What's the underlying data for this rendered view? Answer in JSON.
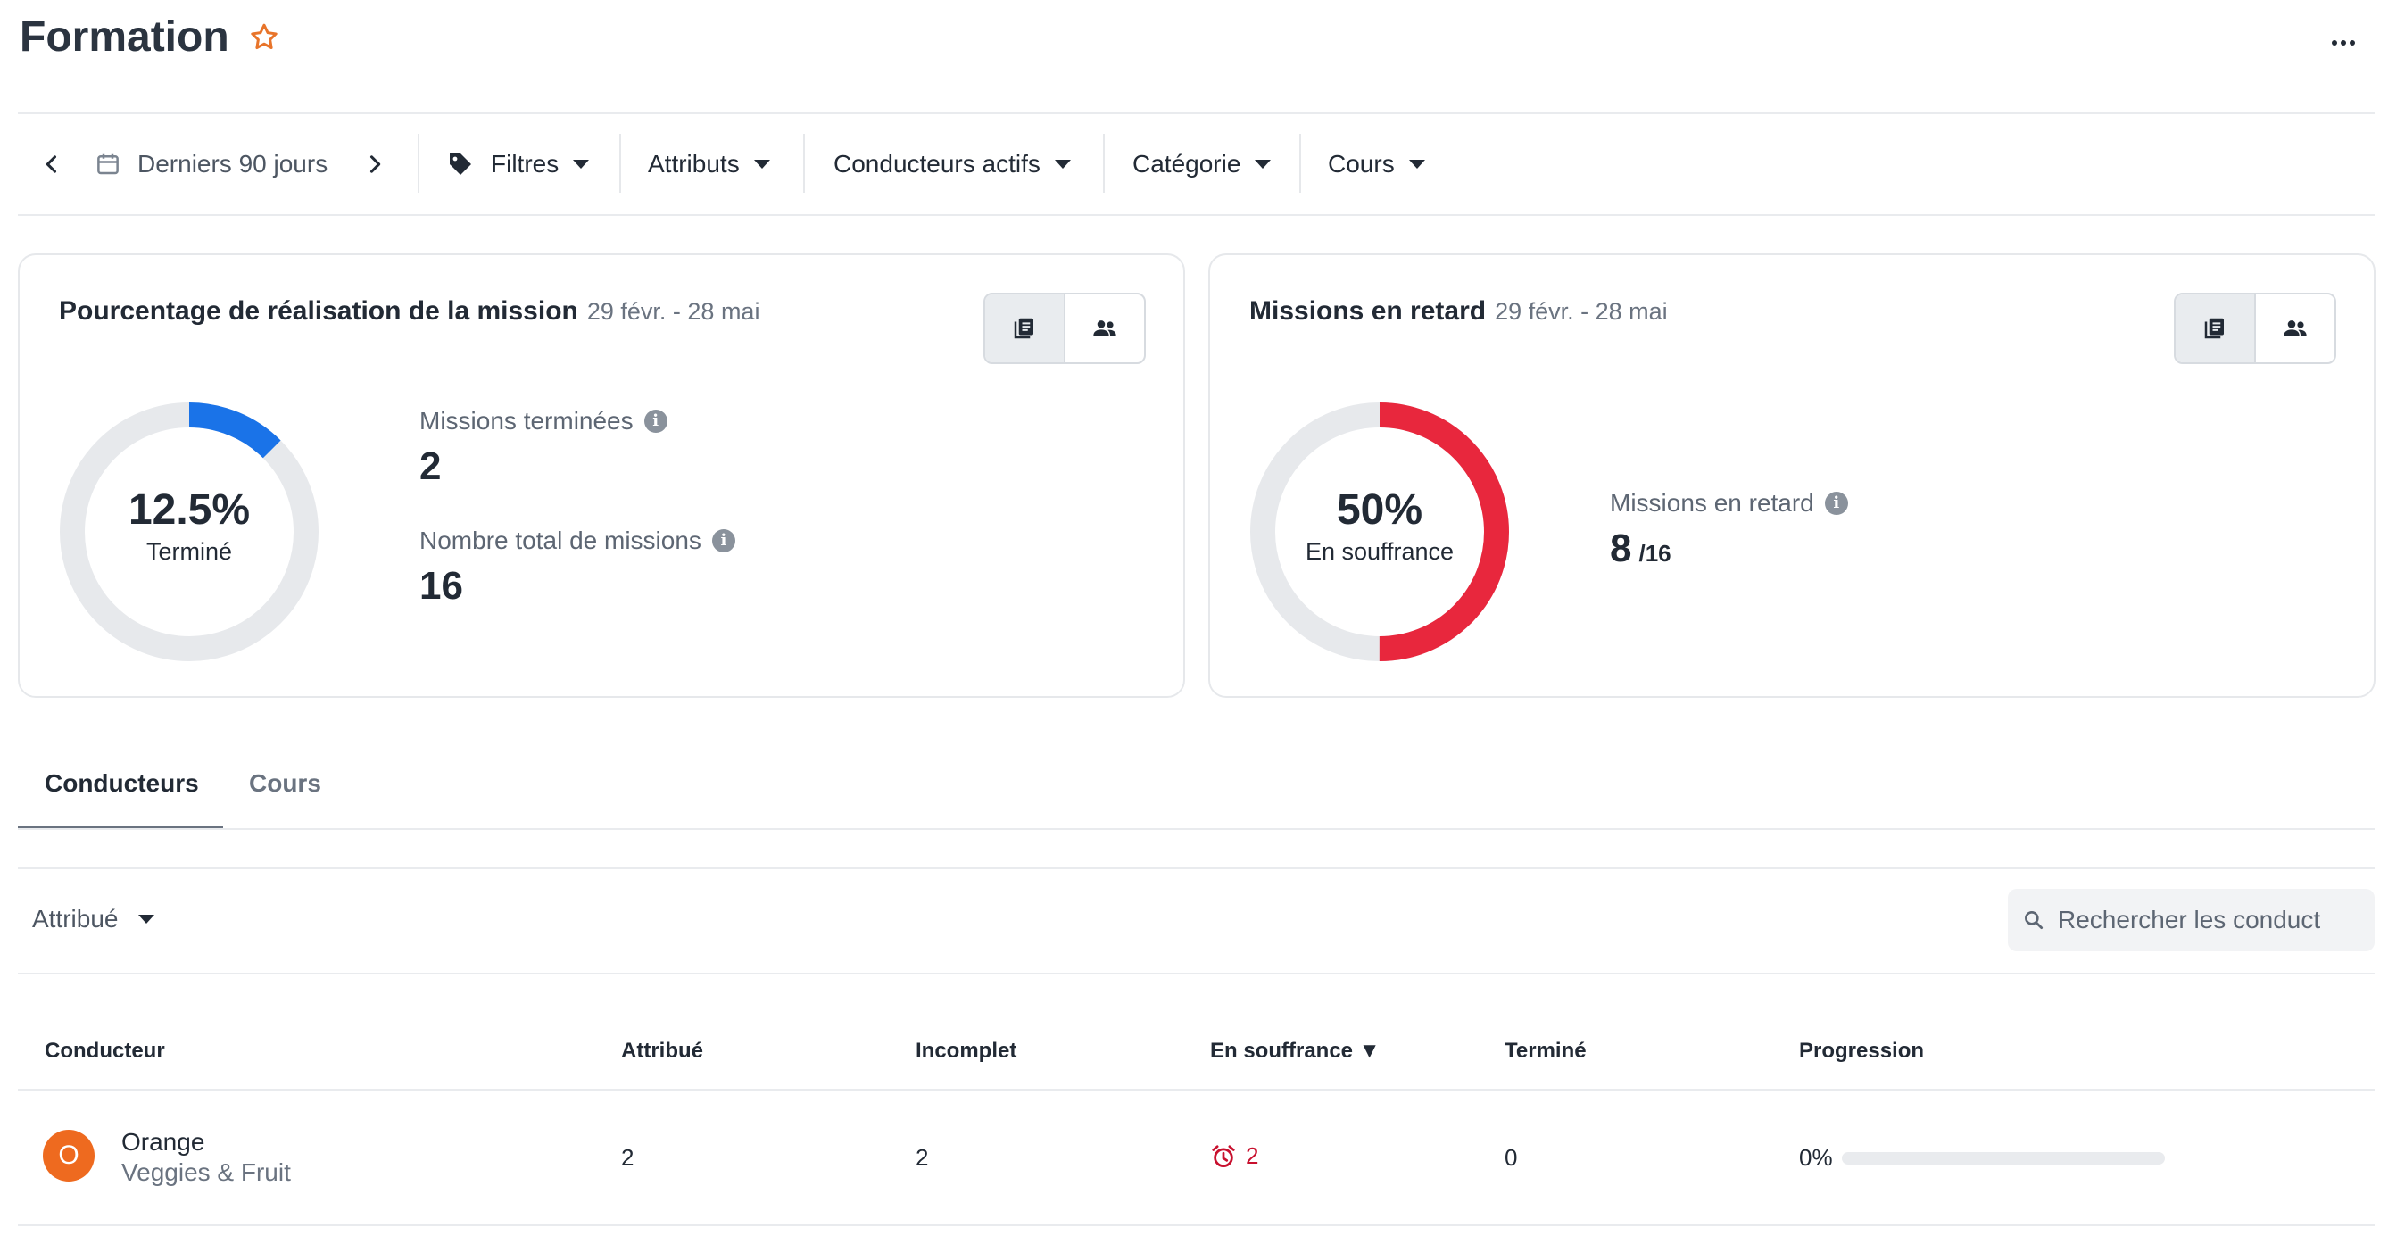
{
  "header": {
    "title": "Formation"
  },
  "toolbar": {
    "date_range": "Derniers 90 jours",
    "filters": "Filtres",
    "attributes": "Attributs",
    "drivers": "Conducteurs actifs",
    "category": "Catégorie",
    "courses": "Cours"
  },
  "card_completion": {
    "title": "Pourcentage de réalisation de la mission",
    "date": "29 févr. - 28 mai",
    "donut_value": "12.5%",
    "donut_label": "Terminé",
    "donut_fraction": 0.125,
    "donut_color": "#1a73e8",
    "stat1_label": "Missions terminées",
    "stat1_value": "2",
    "stat2_label": "Nombre total de missions",
    "stat2_value": "16"
  },
  "card_late": {
    "title": "Missions en retard",
    "date": "29 févr. - 28 mai",
    "donut_value": "50%",
    "donut_label": "En souffrance",
    "donut_fraction": 0.5,
    "donut_color": "#e8273d",
    "stat_label": "Missions en retard",
    "stat_value": "8",
    "stat_total": "/16"
  },
  "tabs": [
    {
      "label": "Conducteurs",
      "active": true
    },
    {
      "label": "Cours",
      "active": false
    }
  ],
  "filter": {
    "label": "Attribué"
  },
  "search": {
    "placeholder": "Rechercher les conduct"
  },
  "table": {
    "columns": [
      "Conducteur",
      "Attribué",
      "Incomplet",
      "En souffrance ▼",
      "Terminé",
      "Progression"
    ],
    "rows": [
      {
        "avatar": "O",
        "name": "Orange",
        "group": "Veggies & Fruit",
        "assigned": "2",
        "incomplete": "2",
        "overdue": "2",
        "completed": "0",
        "progress": "0%",
        "progress_fraction": 0
      }
    ]
  },
  "colors": {
    "accent": "#1a73e8",
    "danger": "#e8273d",
    "star": "#e8742a",
    "avatar": "#ee6a1f"
  }
}
